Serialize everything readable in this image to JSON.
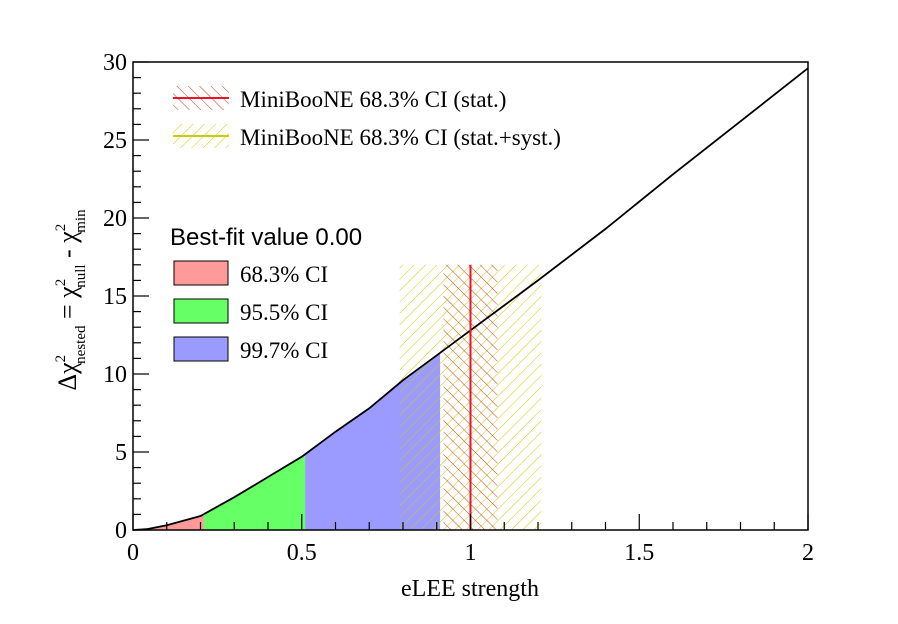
{
  "chart_data": {
    "type": "area",
    "xlabel": "eLEE strength",
    "ylabel": {
      "main": "Δχ",
      "sup1": "2",
      "sub1": "nested",
      "eq": " = χ",
      "sup2": "2",
      "sub2": "null",
      "minus": " - χ",
      "sup3": "2",
      "sub3": "min"
    },
    "xlim": [
      0,
      2
    ],
    "ylim": [
      0,
      30
    ],
    "x_ticks": [
      0,
      0.5,
      1,
      1.5,
      2
    ],
    "x_tick_labels": [
      "0",
      "0.5",
      "1",
      "1.5",
      "2"
    ],
    "y_ticks": [
      0,
      5,
      10,
      15,
      20,
      25,
      30
    ],
    "y_tick_labels": [
      "0",
      "5",
      "10",
      "15",
      "20",
      "25",
      "30"
    ],
    "curve": {
      "x": [
        0,
        0.04,
        0.1,
        0.2,
        0.3,
        0.4,
        0.5,
        0.6,
        0.7,
        0.8,
        0.9,
        1.0,
        1.2,
        1.4,
        1.6,
        1.8,
        2.0
      ],
      "y": [
        0,
        0.05,
        0.3,
        0.9,
        2.1,
        3.4,
        4.7,
        6.3,
        7.8,
        9.6,
        11.2,
        12.8,
        16.0,
        19.3,
        22.8,
        26.2,
        29.6
      ],
      "color": "#000000"
    },
    "intervals": [
      {
        "label": "68.3% CI",
        "x_from": 0.0,
        "x_to": 0.21,
        "color": "#fe9a9a"
      },
      {
        "label": "95.5% CI",
        "x_from": 0.21,
        "x_to": 0.51,
        "color": "#66ff66"
      },
      {
        "label": "99.7% CI",
        "x_from": 0.51,
        "x_to": 0.91,
        "color": "#9b9bff"
      }
    ],
    "best_fit_label": "Best-fit value 0.00",
    "miniboone": {
      "y_top": 17,
      "central": 1.0,
      "stat": {
        "label": "MiniBooNE 68.3% CI (stat.)",
        "x_from": 0.92,
        "x_to": 1.08,
        "color": "#e8142a"
      },
      "syst": {
        "label": "MiniBooNE 68.3% CI (stat.+syst.)",
        "x_from": 0.79,
        "x_to": 1.21,
        "color": "#cccc00"
      }
    },
    "grid": false,
    "legend_position": "top-left"
  }
}
